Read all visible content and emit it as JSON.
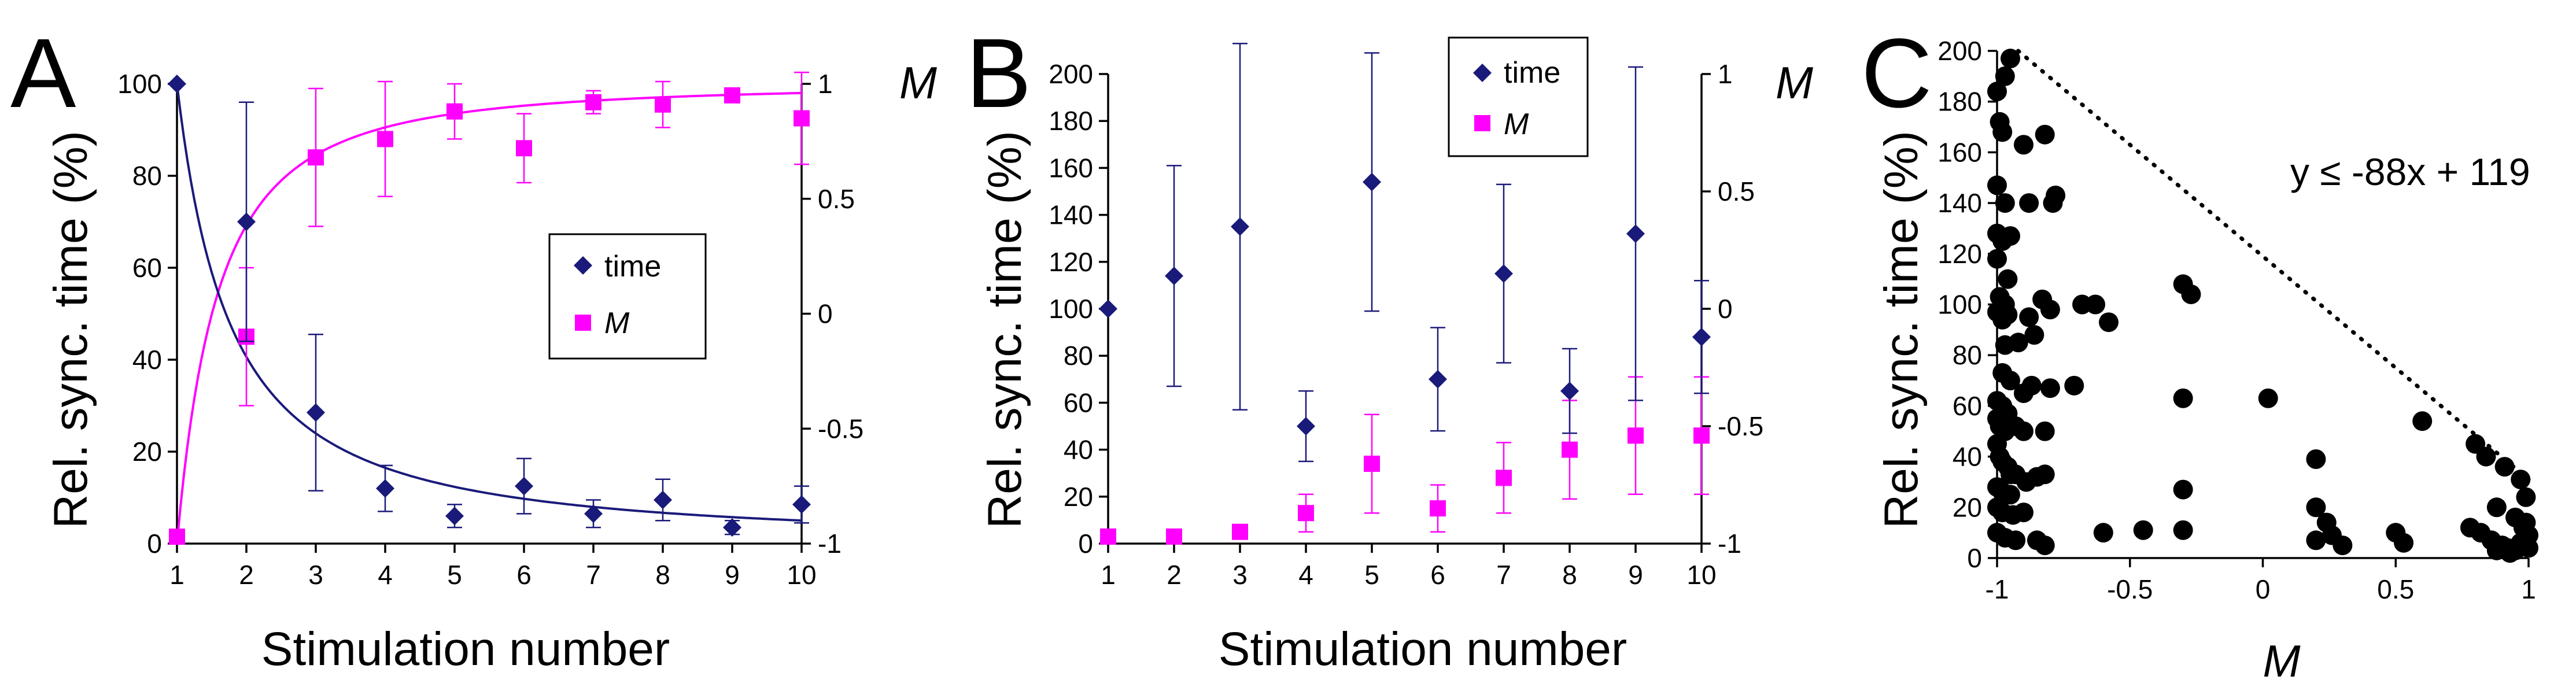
{
  "colors": {
    "time": "#1a1a7a",
    "M": "#ff00ff",
    "scatter": "#000000",
    "axis": "#000000"
  },
  "chart_data": [
    {
      "panel": "A",
      "type": "scatter",
      "xlabel": "Stimulation number",
      "ylabel": "Rel. sync. time (%)",
      "y2label": "M",
      "x_ticks": [
        "1",
        "2",
        "3",
        "4",
        "5",
        "6",
        "7",
        "8",
        "9",
        "10"
      ],
      "y_ticks": [
        "0",
        "20",
        "40",
        "60",
        "80",
        "100"
      ],
      "y2_ticks": [
        "1",
        "0.5",
        "0",
        "-0.5",
        "-1"
      ],
      "xlim": [
        1,
        10
      ],
      "ylim": [
        0,
        100
      ],
      "y2lim": [
        -1,
        1
      ],
      "legend": {
        "position": "center-right",
        "entries": [
          "time",
          "M"
        ]
      },
      "series": [
        {
          "name": "time",
          "axis": "left",
          "marker": "diamond",
          "x": [
            1,
            2,
            3,
            4,
            5,
            6,
            7,
            8,
            9,
            10
          ],
          "y": [
            100,
            70,
            28.5,
            12,
            6,
            12.5,
            6.5,
            9.5,
            3.5,
            8.5
          ],
          "err": [
            0,
            26,
            17,
            5,
            2.5,
            6,
            3,
            4.5,
            1.5,
            4
          ]
        },
        {
          "name": "M",
          "axis": "right",
          "marker": "square",
          "x": [
            1,
            2,
            3,
            4,
            5,
            6,
            7,
            8,
            9,
            10
          ],
          "y": [
            -0.97,
            -0.1,
            0.68,
            0.76,
            0.88,
            0.72,
            0.92,
            0.91,
            0.95,
            0.85
          ],
          "err": [
            0,
            0.3,
            0.3,
            0.25,
            0.12,
            0.15,
            0.05,
            0.1,
            0.02,
            0.2
          ]
        },
        {
          "name": "time fit",
          "axis": "left",
          "marker": "line",
          "fit": "y = 100 / x^1.3"
        },
        {
          "name": "M fit",
          "axis": "right",
          "marker": "line",
          "fit": "M = 1 - 2 / x^1.7"
        }
      ]
    },
    {
      "panel": "B",
      "type": "scatter",
      "xlabel": "Stimulation number",
      "ylabel": "Rel. sync. time (%)",
      "y2label": "M",
      "x_ticks": [
        "1",
        "2",
        "3",
        "4",
        "5",
        "6",
        "7",
        "8",
        "9",
        "10"
      ],
      "y_ticks": [
        "0",
        "20",
        "40",
        "60",
        "80",
        "100",
        "120",
        "140",
        "160",
        "180",
        "200"
      ],
      "y2_ticks": [
        "1",
        "0.5",
        "0",
        "-0.5",
        "-1"
      ],
      "xlim": [
        1,
        10
      ],
      "ylim": [
        0,
        200
      ],
      "y2lim": [
        -1,
        1
      ],
      "legend": {
        "position": "top-right",
        "entries": [
          "time",
          "M"
        ]
      },
      "series": [
        {
          "name": "time",
          "axis": "left",
          "marker": "diamond",
          "x": [
            1,
            2,
            3,
            4,
            5,
            6,
            7,
            8,
            9,
            10
          ],
          "y": [
            100,
            114,
            135,
            50,
            154,
            70,
            115,
            65,
            132,
            88
          ],
          "err": [
            0,
            47,
            78,
            15,
            55,
            22,
            38,
            18,
            71,
            24
          ]
        },
        {
          "name": "M",
          "axis": "right",
          "marker": "square",
          "x": [
            1,
            2,
            3,
            4,
            5,
            6,
            7,
            8,
            9,
            10
          ],
          "y": [
            -0.97,
            -0.97,
            -0.95,
            -0.87,
            -0.66,
            -0.85,
            -0.72,
            -0.6,
            -0.54,
            -0.54
          ],
          "err": [
            0,
            0,
            0,
            0.08,
            0.21,
            0.1,
            0.15,
            0.21,
            0.25,
            0.25
          ]
        }
      ]
    },
    {
      "panel": "C",
      "type": "scatter",
      "xlabel": "M",
      "ylabel": "Rel. sync. time (%)",
      "x_ticks": [
        "-1",
        "-0.5",
        "0",
        "0.5",
        "1"
      ],
      "y_ticks": [
        "0",
        "20",
        "40",
        "60",
        "80",
        "100",
        "120",
        "140",
        "160",
        "180",
        "200"
      ],
      "xlim": [
        -1,
        1
      ],
      "ylim": [
        0,
        200
      ],
      "annotation": "y ≤ -88x + 119",
      "boundary_line": {
        "slope": -88,
        "intercept": 119,
        "style": "dotted"
      },
      "points": [
        [
          -0.95,
          197
        ],
        [
          -0.97,
          190
        ],
        [
          -1,
          184
        ],
        [
          -0.99,
          172
        ],
        [
          -0.98,
          168
        ],
        [
          -0.9,
          163
        ],
        [
          -0.82,
          167
        ],
        [
          -1,
          147
        ],
        [
          -0.97,
          140
        ],
        [
          -0.88,
          140
        ],
        [
          -0.78,
          143
        ],
        [
          -0.79,
          140
        ],
        [
          -1,
          128
        ],
        [
          -0.98,
          125
        ],
        [
          -0.95,
          127
        ],
        [
          -1,
          118
        ],
        [
          -0.96,
          110
        ],
        [
          -0.99,
          103
        ],
        [
          -0.97,
          100
        ],
        [
          -1,
          97
        ],
        [
          -0.98,
          94
        ],
        [
          -0.96,
          96
        ],
        [
          -0.88,
          95
        ],
        [
          -0.86,
          88
        ],
        [
          -0.83,
          102
        ],
        [
          -0.8,
          98
        ],
        [
          -0.68,
          100
        ],
        [
          -0.63,
          100
        ],
        [
          -0.58,
          93
        ],
        [
          -0.3,
          108
        ],
        [
          -0.27,
          104
        ],
        [
          -0.97,
          84
        ],
        [
          -0.92,
          85
        ],
        [
          -0.98,
          73
        ],
        [
          -0.95,
          70
        ],
        [
          -0.9,
          65
        ],
        [
          -0.87,
          68
        ],
        [
          -0.8,
          67
        ],
        [
          -0.71,
          68
        ],
        [
          -0.3,
          63
        ],
        [
          0.02,
          63
        ],
        [
          0.6,
          54
        ],
        [
          -1,
          62
        ],
        [
          -0.98,
          60
        ],
        [
          -0.96,
          57
        ],
        [
          -1,
          55
        ],
        [
          -0.99,
          52
        ],
        [
          -0.97,
          50
        ],
        [
          -0.93,
          52
        ],
        [
          -0.9,
          50
        ],
        [
          -0.82,
          50
        ],
        [
          -1,
          45
        ],
        [
          -0.99,
          40
        ],
        [
          -0.98,
          38
        ],
        [
          -0.96,
          36
        ],
        [
          -0.95,
          33
        ],
        [
          -0.93,
          33
        ],
        [
          -0.89,
          30
        ],
        [
          -0.85,
          32
        ],
        [
          -0.82,
          33
        ],
        [
          -1,
          28
        ],
        [
          -0.98,
          26
        ],
        [
          -0.95,
          25
        ],
        [
          -0.3,
          27
        ],
        [
          0.2,
          39
        ],
        [
          0.8,
          45
        ],
        [
          0.84,
          40
        ],
        [
          0.91,
          36
        ],
        [
          0.97,
          31
        ],
        [
          0.99,
          24
        ],
        [
          -1,
          20
        ],
        [
          -0.98,
          18
        ],
        [
          -0.94,
          17
        ],
        [
          -0.9,
          18
        ],
        [
          0.2,
          20
        ],
        [
          0.24,
          14
        ],
        [
          0.88,
          20
        ],
        [
          0.95,
          16
        ],
        [
          0.98,
          12
        ],
        [
          -1,
          10
        ],
        [
          -0.97,
          8
        ],
        [
          -0.93,
          7
        ],
        [
          -0.85,
          7
        ],
        [
          -0.82,
          5
        ],
        [
          -0.6,
          10
        ],
        [
          -0.45,
          11
        ],
        [
          -0.3,
          11
        ],
        [
          0.2,
          7
        ],
        [
          0.26,
          9
        ],
        [
          0.3,
          5
        ],
        [
          0.5,
          10
        ],
        [
          0.53,
          6
        ],
        [
          0.78,
          12
        ],
        [
          0.82,
          10
        ],
        [
          0.86,
          7
        ],
        [
          0.9,
          5
        ],
        [
          0.92,
          4
        ],
        [
          0.95,
          3
        ],
        [
          0.97,
          6
        ],
        [
          1,
          4
        ],
        [
          1,
          9
        ],
        [
          0.99,
          14
        ],
        [
          0.93,
          2
        ],
        [
          0.88,
          3
        ]
      ]
    }
  ],
  "labels": {
    "A": {
      "letter": "A",
      "xlabel": "Stimulation number",
      "ylabel": "Rel. sync. time (%)",
      "y2label": "M",
      "legend_time": "time",
      "legend_M": "M"
    },
    "B": {
      "letter": "B",
      "xlabel": "Stimulation number",
      "ylabel": "Rel. sync. time (%)",
      "y2label": "M",
      "legend_time": "time",
      "legend_M": "M"
    },
    "C": {
      "letter": "C",
      "xlabel": "M",
      "ylabel": "Rel. sync. time (%)",
      "annotation": "y ≤ -88x + 119"
    }
  }
}
